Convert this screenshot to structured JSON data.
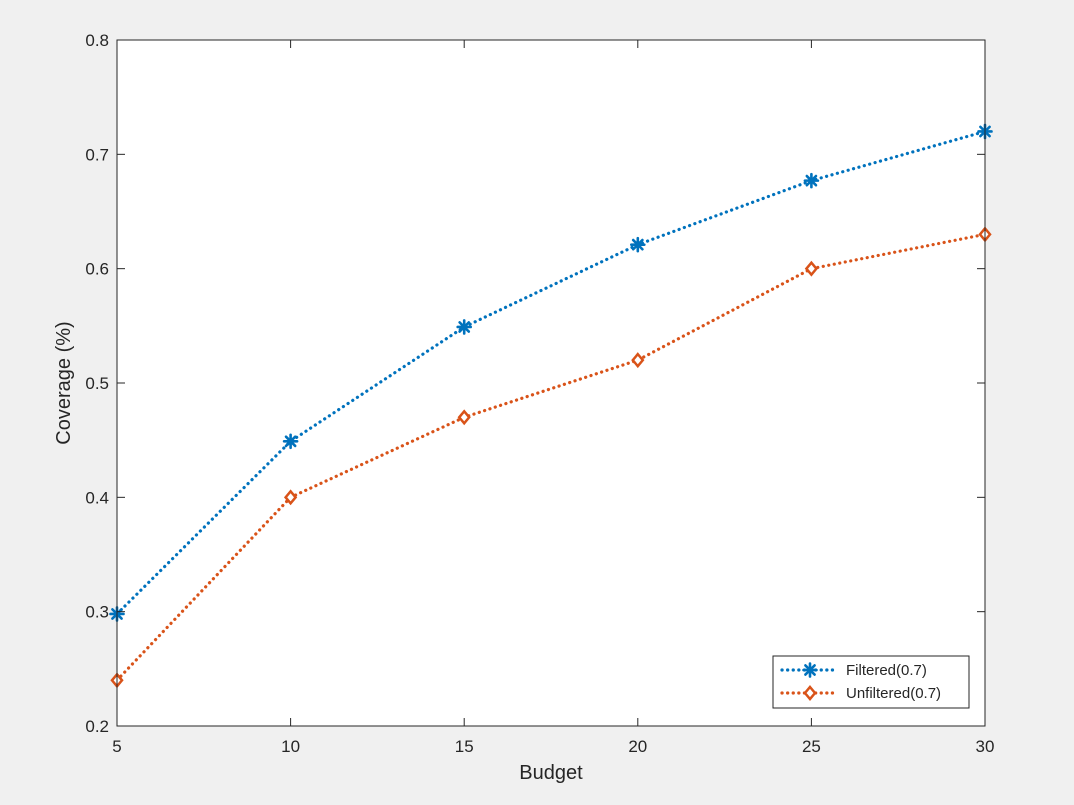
{
  "chart_data": {
    "type": "line",
    "title": "",
    "xlabel": "Budget",
    "ylabel": "Coverage (%)",
    "xlim": [
      5,
      30
    ],
    "ylim": [
      0.2,
      0.8
    ],
    "xticks": [
      "5",
      "10",
      "15",
      "20",
      "25",
      "30"
    ],
    "yticks": [
      "0.2",
      "0.3",
      "0.4",
      "0.5",
      "0.6",
      "0.7",
      "0.8"
    ],
    "grid": false,
    "legend_position": "bottom-right",
    "x": [
      5,
      10,
      15,
      20,
      25,
      30
    ],
    "series": [
      {
        "name": "Filtered(0.7)",
        "values": [
          0.298,
          0.449,
          0.549,
          0.621,
          0.677,
          0.72
        ],
        "color": "#0072BD",
        "marker": "asterisk",
        "line_style": "dotted"
      },
      {
        "name": "Unfiltered(0.7)",
        "values": [
          0.24,
          0.4,
          0.47,
          0.52,
          0.6,
          0.63
        ],
        "color": "#D95319",
        "marker": "diamond",
        "line_style": "dotted"
      }
    ]
  }
}
